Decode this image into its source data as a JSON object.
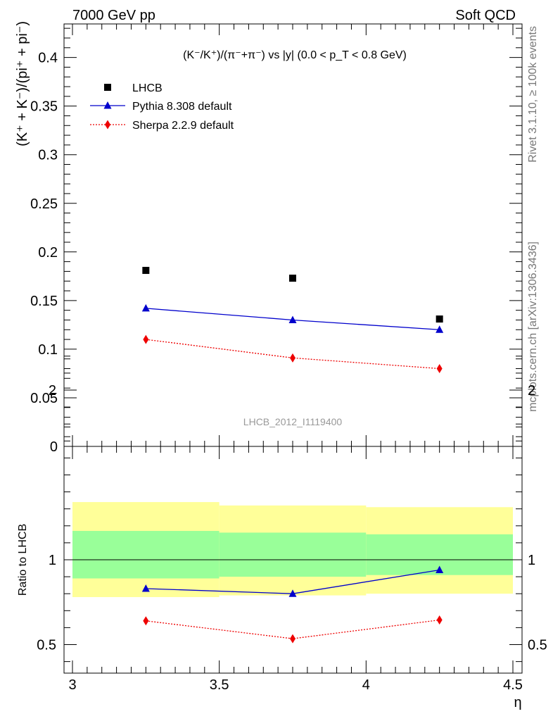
{
  "header": {
    "left": "7000 GeV pp",
    "right": "Soft QCD"
  },
  "side_labels": {
    "rivet": "Rivet 3.1.10, ≥ 100k events",
    "mcplots": "mcplots.cern.ch [arXiv:1306.3436]"
  },
  "chart_data": [
    {
      "type": "scatter",
      "title": "(K⁻/K⁺)/(π⁻+π⁻) vs |y| (0.0 < p_T < 0.8 GeV)",
      "watermark": "LHCB_2012_I1119400",
      "ylabel": "(K⁺ + K⁻)/(pi⁺ + pi⁻)",
      "xlim": [
        3,
        4.5
      ],
      "ylim": [
        0,
        0.435
      ],
      "yticks": [
        "0",
        "0.05",
        "0.1",
        "0.15",
        "0.2",
        "0.25",
        "0.3",
        "0.35",
        "0.4"
      ],
      "legend_position": "top-left",
      "x": [
        3.25,
        3.75,
        4.25
      ],
      "series": [
        {
          "name": "LHCB",
          "marker": "square",
          "line": "none",
          "color": "#000000",
          "values": [
            0.181,
            0.173,
            0.131
          ]
        },
        {
          "name": "Pythia 8.308 default",
          "marker": "triangle",
          "line": "solid",
          "color": "#0000cc",
          "values": [
            0.142,
            0.13,
            0.12
          ]
        },
        {
          "name": "Sherpa 2.2.9 default",
          "marker": "diamond",
          "line": "dotted",
          "color": "#ee0000",
          "values": [
            0.11,
            0.091,
            0.08
          ]
        }
      ]
    },
    {
      "type": "line",
      "ylabel": "Ratio to LHCB",
      "xlabel": "η",
      "xlim": [
        3,
        4.5
      ],
      "ylim": [
        0.33,
        2.3
      ],
      "yticks": [
        "0.5",
        "1",
        "2"
      ],
      "xticks": [
        "3",
        "3.5",
        "4",
        "4.5"
      ],
      "bands": [
        {
          "x_from": 3.0,
          "x_to": 3.5,
          "yellow": [
            0.78,
            1.34
          ],
          "green": [
            0.89,
            1.17
          ]
        },
        {
          "x_from": 3.5,
          "x_to": 4.0,
          "yellow": [
            0.79,
            1.32
          ],
          "green": [
            0.9,
            1.16
          ]
        },
        {
          "x_from": 4.0,
          "x_to": 4.5,
          "yellow": [
            0.8,
            1.31
          ],
          "green": [
            0.91,
            1.15
          ]
        }
      ],
      "bands_colors": {
        "yellow": "#ffff99",
        "green": "#99ff99"
      },
      "x": [
        3.25,
        3.75,
        4.25
      ],
      "series": [
        {
          "name": "Pythia 8.308 default",
          "marker": "triangle",
          "line": "solid",
          "color": "#0000cc",
          "values": [
            0.83,
            0.8,
            0.94
          ]
        },
        {
          "name": "Sherpa 2.2.9 default",
          "marker": "diamond",
          "line": "dotted",
          "color": "#ee0000",
          "values": [
            0.64,
            0.535,
            0.645
          ]
        }
      ]
    }
  ]
}
